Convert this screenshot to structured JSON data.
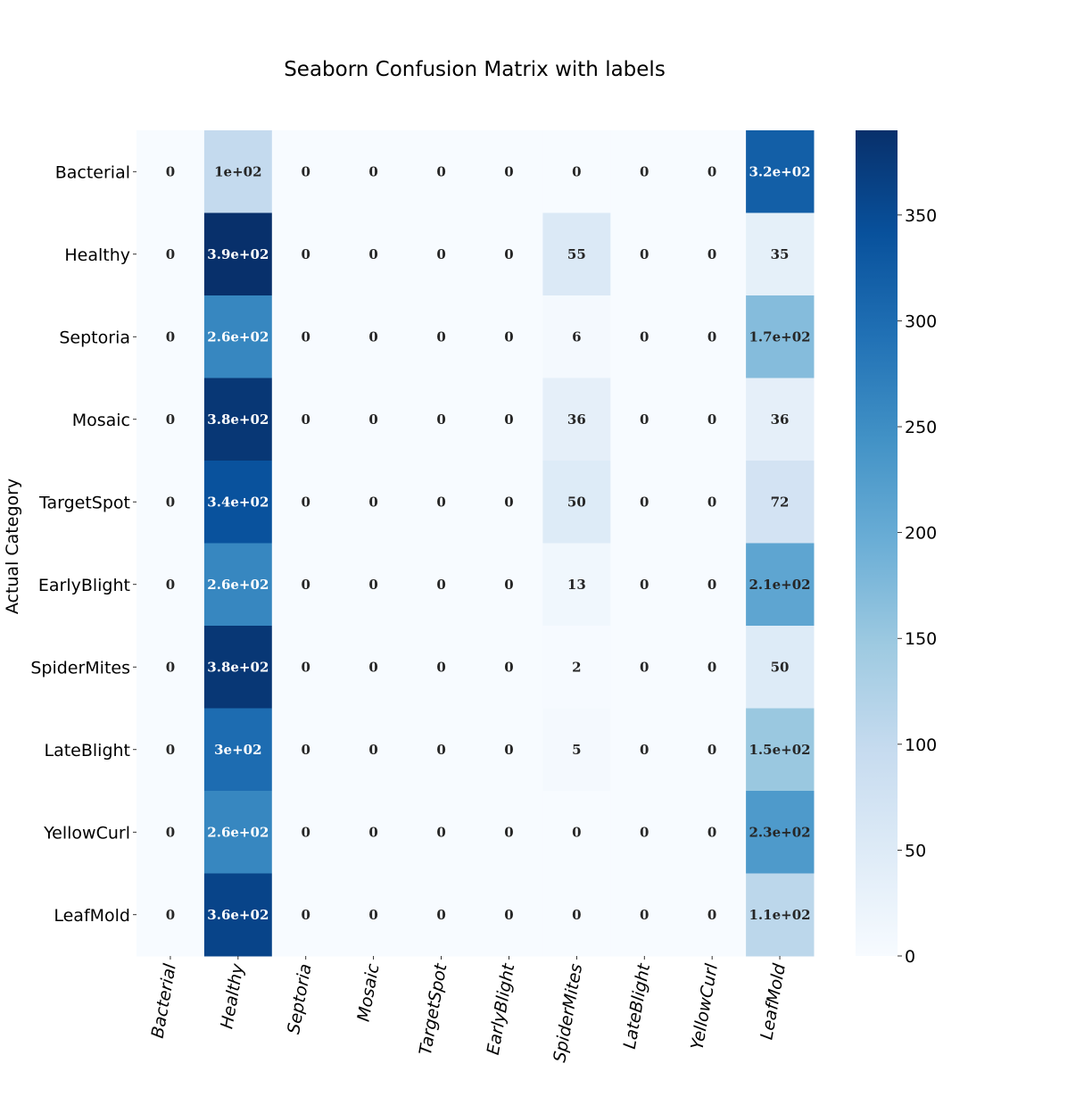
{
  "chart_data": {
    "type": "heatmap",
    "title": "Seaborn Confusion Matrix with labels",
    "ylabel": "Actual Category",
    "xlabel": "",
    "row_labels": [
      "Bacterial",
      "Healthy",
      "Septoria",
      "Mosaic",
      "TargetSpot",
      "EarlyBlight",
      "SpiderMites",
      "LateBlight",
      "YellowCurl",
      "LeafMold"
    ],
    "col_labels": [
      "Bacterial",
      "Healthy",
      "Septoria",
      "Mosaic",
      "TargetSpot",
      "EarlyBlight",
      "SpiderMites",
      "LateBlight",
      "YellowCurl",
      "LeafMold"
    ],
    "values": [
      [
        0,
        100,
        0,
        0,
        0,
        0,
        0,
        0,
        0,
        320
      ],
      [
        0,
        390,
        0,
        0,
        0,
        0,
        55,
        0,
        0,
        35
      ],
      [
        0,
        260,
        0,
        0,
        0,
        0,
        6,
        0,
        0,
        170
      ],
      [
        0,
        380,
        0,
        0,
        0,
        0,
        36,
        0,
        0,
        36
      ],
      [
        0,
        340,
        0,
        0,
        0,
        0,
        50,
        0,
        0,
        72
      ],
      [
        0,
        260,
        0,
        0,
        0,
        0,
        13,
        0,
        0,
        210
      ],
      [
        0,
        380,
        0,
        0,
        0,
        0,
        2,
        0,
        0,
        50
      ],
      [
        0,
        300,
        0,
        0,
        0,
        0,
        5,
        0,
        0,
        150
      ],
      [
        0,
        260,
        0,
        0,
        0,
        0,
        0,
        0,
        0,
        230
      ],
      [
        0,
        360,
        0,
        0,
        0,
        0,
        0,
        0,
        0,
        110
      ]
    ],
    "annotations": [
      [
        "0",
        "1e+02",
        "0",
        "0",
        "0",
        "0",
        "0",
        "0",
        "0",
        "3.2e+02"
      ],
      [
        "0",
        "3.9e+02",
        "0",
        "0",
        "0",
        "0",
        "55",
        "0",
        "0",
        "35"
      ],
      [
        "0",
        "2.6e+02",
        "0",
        "0",
        "0",
        "0",
        "6",
        "0",
        "0",
        "1.7e+02"
      ],
      [
        "0",
        "3.8e+02",
        "0",
        "0",
        "0",
        "0",
        "36",
        "0",
        "0",
        "36"
      ],
      [
        "0",
        "3.4e+02",
        "0",
        "0",
        "0",
        "0",
        "50",
        "0",
        "0",
        "72"
      ],
      [
        "0",
        "2.6e+02",
        "0",
        "0",
        "0",
        "0",
        "13",
        "0",
        "0",
        "2.1e+02"
      ],
      [
        "0",
        "3.8e+02",
        "0",
        "0",
        "0",
        "0",
        "2",
        "0",
        "0",
        "50"
      ],
      [
        "0",
        "3e+02",
        "0",
        "0",
        "0",
        "0",
        "5",
        "0",
        "0",
        "1.5e+02"
      ],
      [
        "0",
        "2.6e+02",
        "0",
        "0",
        "0",
        "0",
        "0",
        "0",
        "0",
        "2.3e+02"
      ],
      [
        "0",
        "3.6e+02",
        "0",
        "0",
        "0",
        "0",
        "0",
        "0",
        "0",
        "1.1e+02"
      ]
    ],
    "colormap": "Blues",
    "colorbar": {
      "vmin": 0,
      "vmax": 390,
      "ticks": [
        0,
        50,
        100,
        150,
        200,
        250,
        300,
        350
      ],
      "tick_labels": [
        "0",
        "50",
        "100",
        "150",
        "200",
        "250",
        "300",
        "350"
      ]
    },
    "grid": false
  }
}
